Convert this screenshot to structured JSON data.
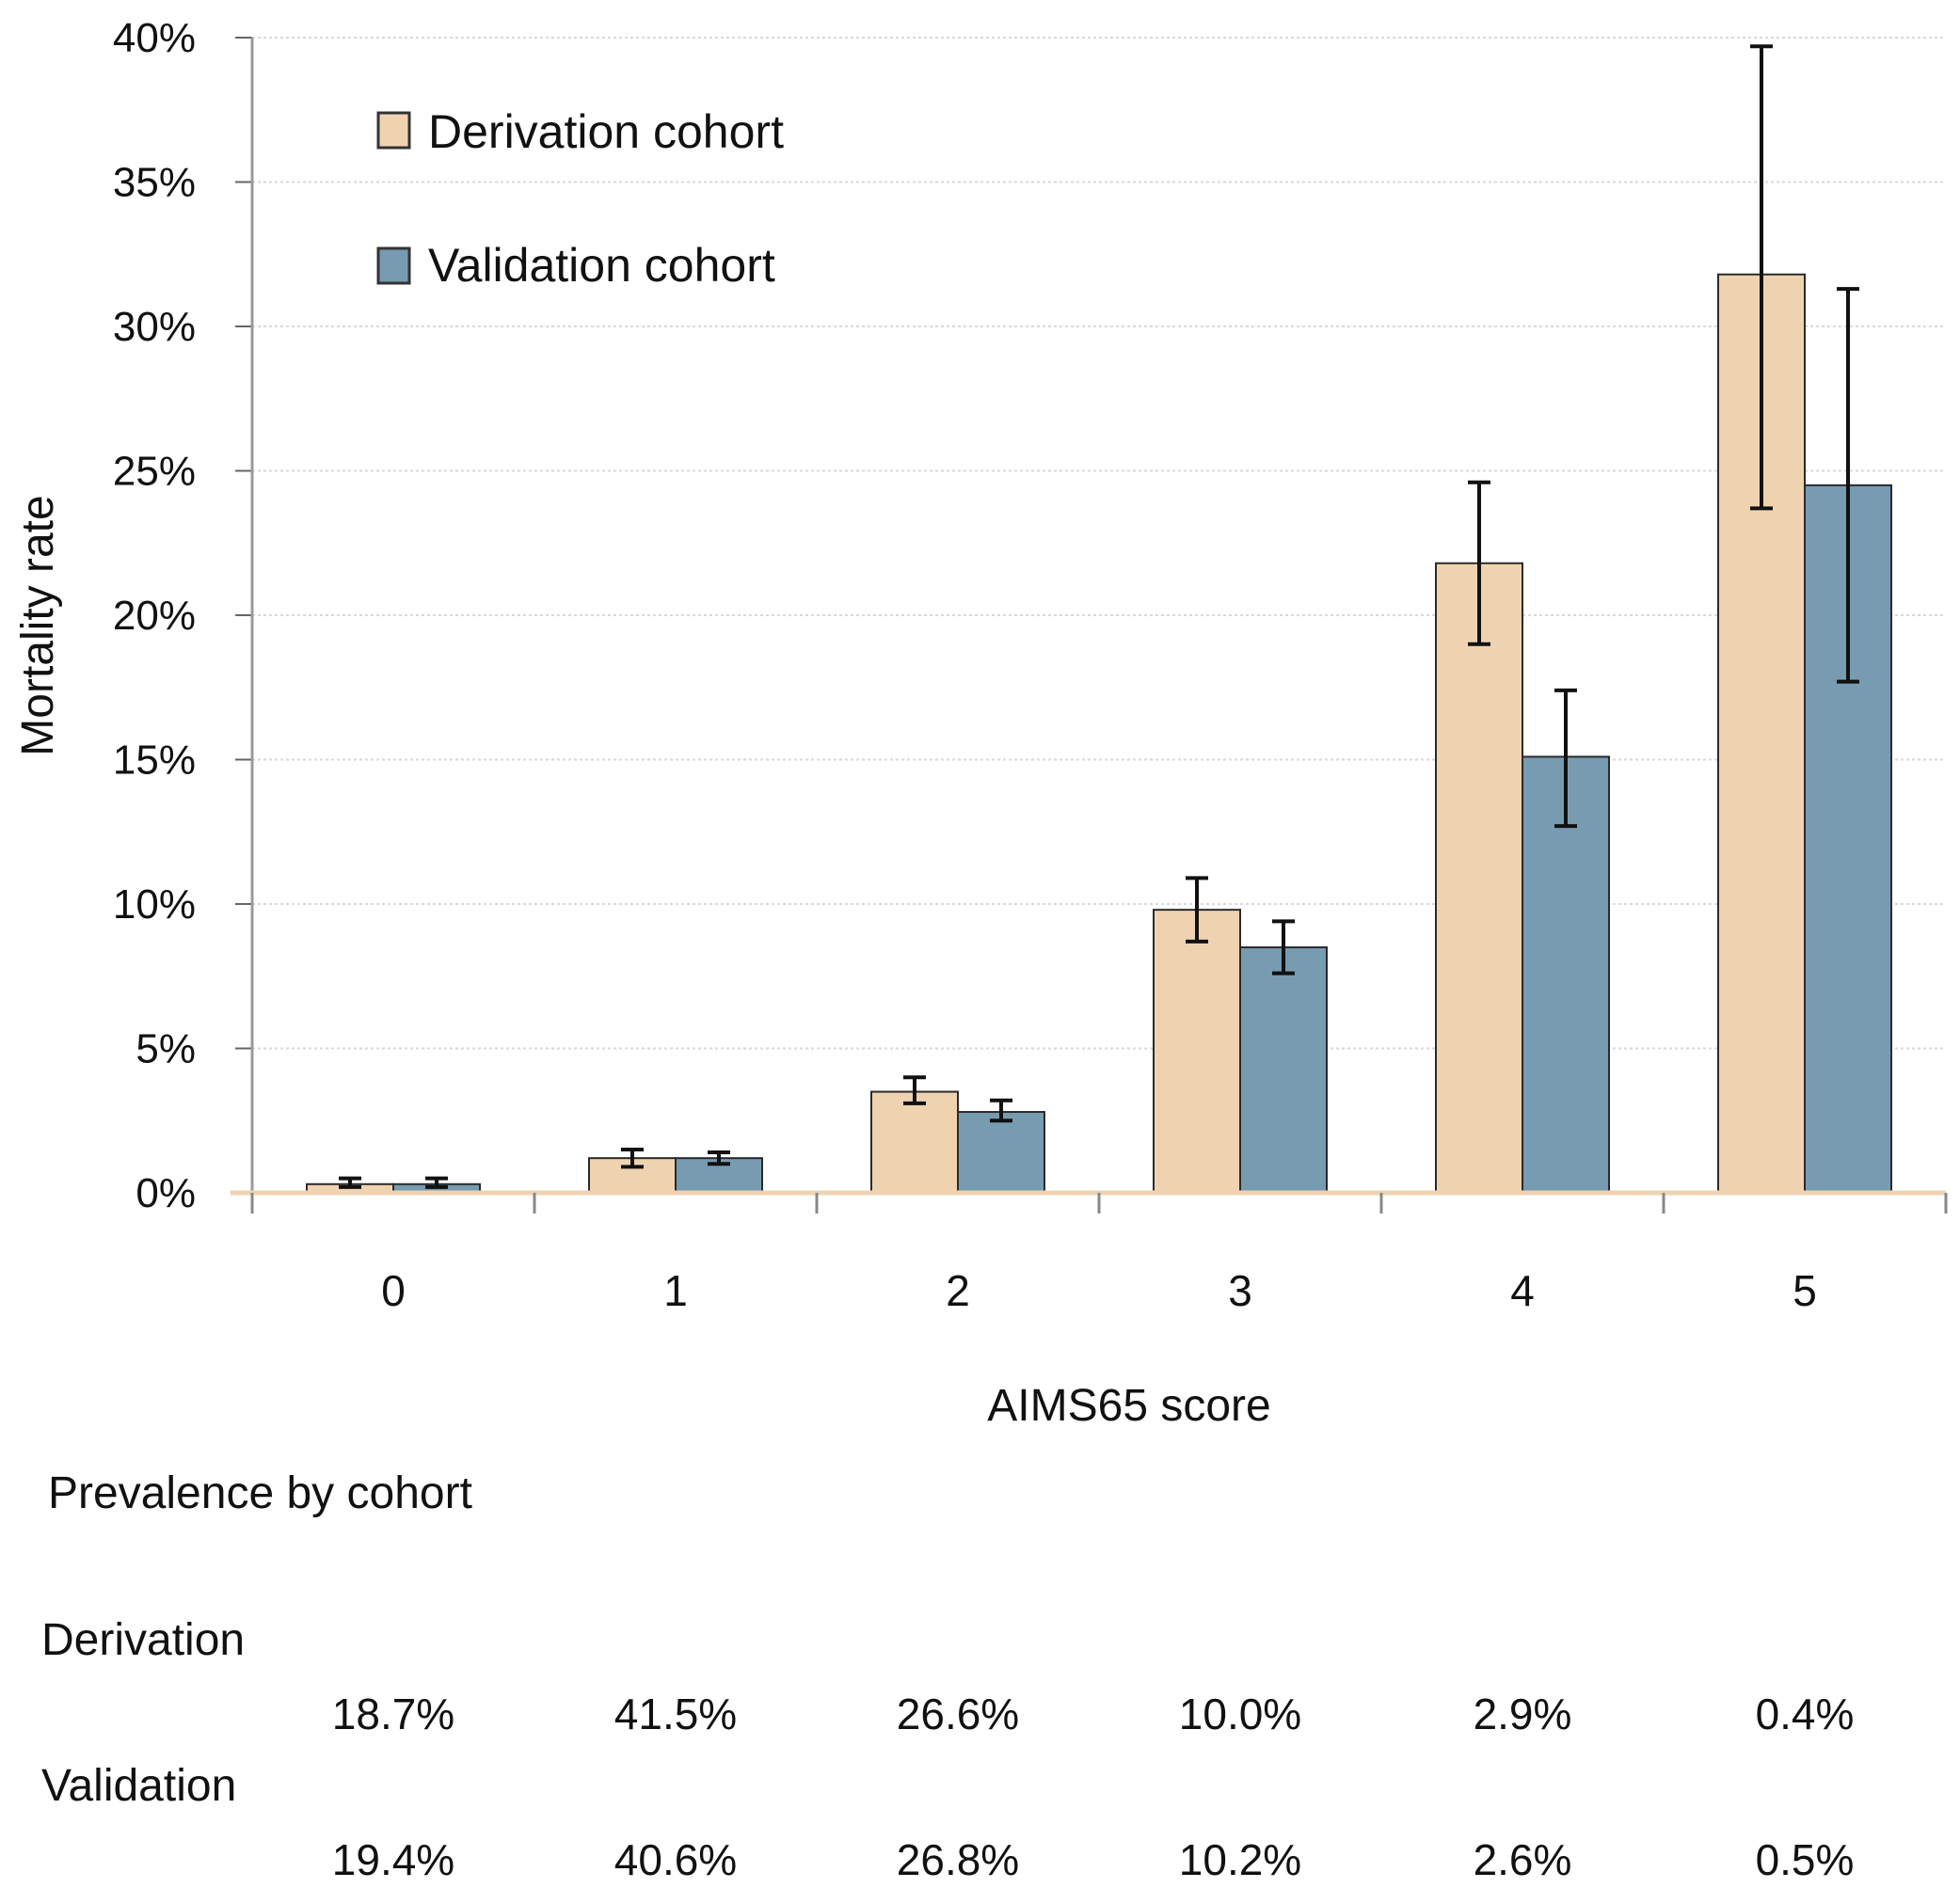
{
  "chart_data": {
    "type": "bar",
    "xlabel": "AIMS65 score",
    "ylabel": "Mortality rate",
    "ylim": [
      0,
      40
    ],
    "y_ticks": [
      "0%",
      "5%",
      "10%",
      "15%",
      "20%",
      "25%",
      "30%",
      "35%",
      "40%"
    ],
    "categories": [
      "0",
      "1",
      "2",
      "3",
      "4",
      "5"
    ],
    "legend_position": "top-left",
    "grid": true,
    "series": [
      {
        "name": "Derivation cohort",
        "color": "#efd3b1",
        "values": [
          0.3,
          1.2,
          3.5,
          9.8,
          21.8,
          31.8
        ],
        "error_low": [
          0.2,
          0.9,
          3.1,
          8.7,
          19.0,
          23.7
        ],
        "error_high": [
          0.5,
          1.5,
          4.0,
          10.9,
          24.6,
          39.7
        ]
      },
      {
        "name": "Validation cohort",
        "color": "#779bb0",
        "values": [
          0.3,
          1.2,
          2.8,
          8.5,
          15.1,
          24.5
        ],
        "error_low": [
          0.2,
          1.0,
          2.5,
          7.6,
          12.7,
          17.7
        ],
        "error_high": [
          0.5,
          1.4,
          3.2,
          9.4,
          17.4,
          31.3
        ]
      }
    ]
  },
  "prevalence": {
    "title": "Prevalence by cohort",
    "rows": [
      {
        "label": "Derivation",
        "values": [
          "18.7%",
          "41.5%",
          "26.6%",
          "10.0%",
          "2.9%",
          "0.4%"
        ]
      },
      {
        "label": "Validation",
        "values": [
          "19.4%",
          "40.6%",
          "26.8%",
          "10.2%",
          "2.6%",
          "0.5%"
        ]
      }
    ]
  }
}
